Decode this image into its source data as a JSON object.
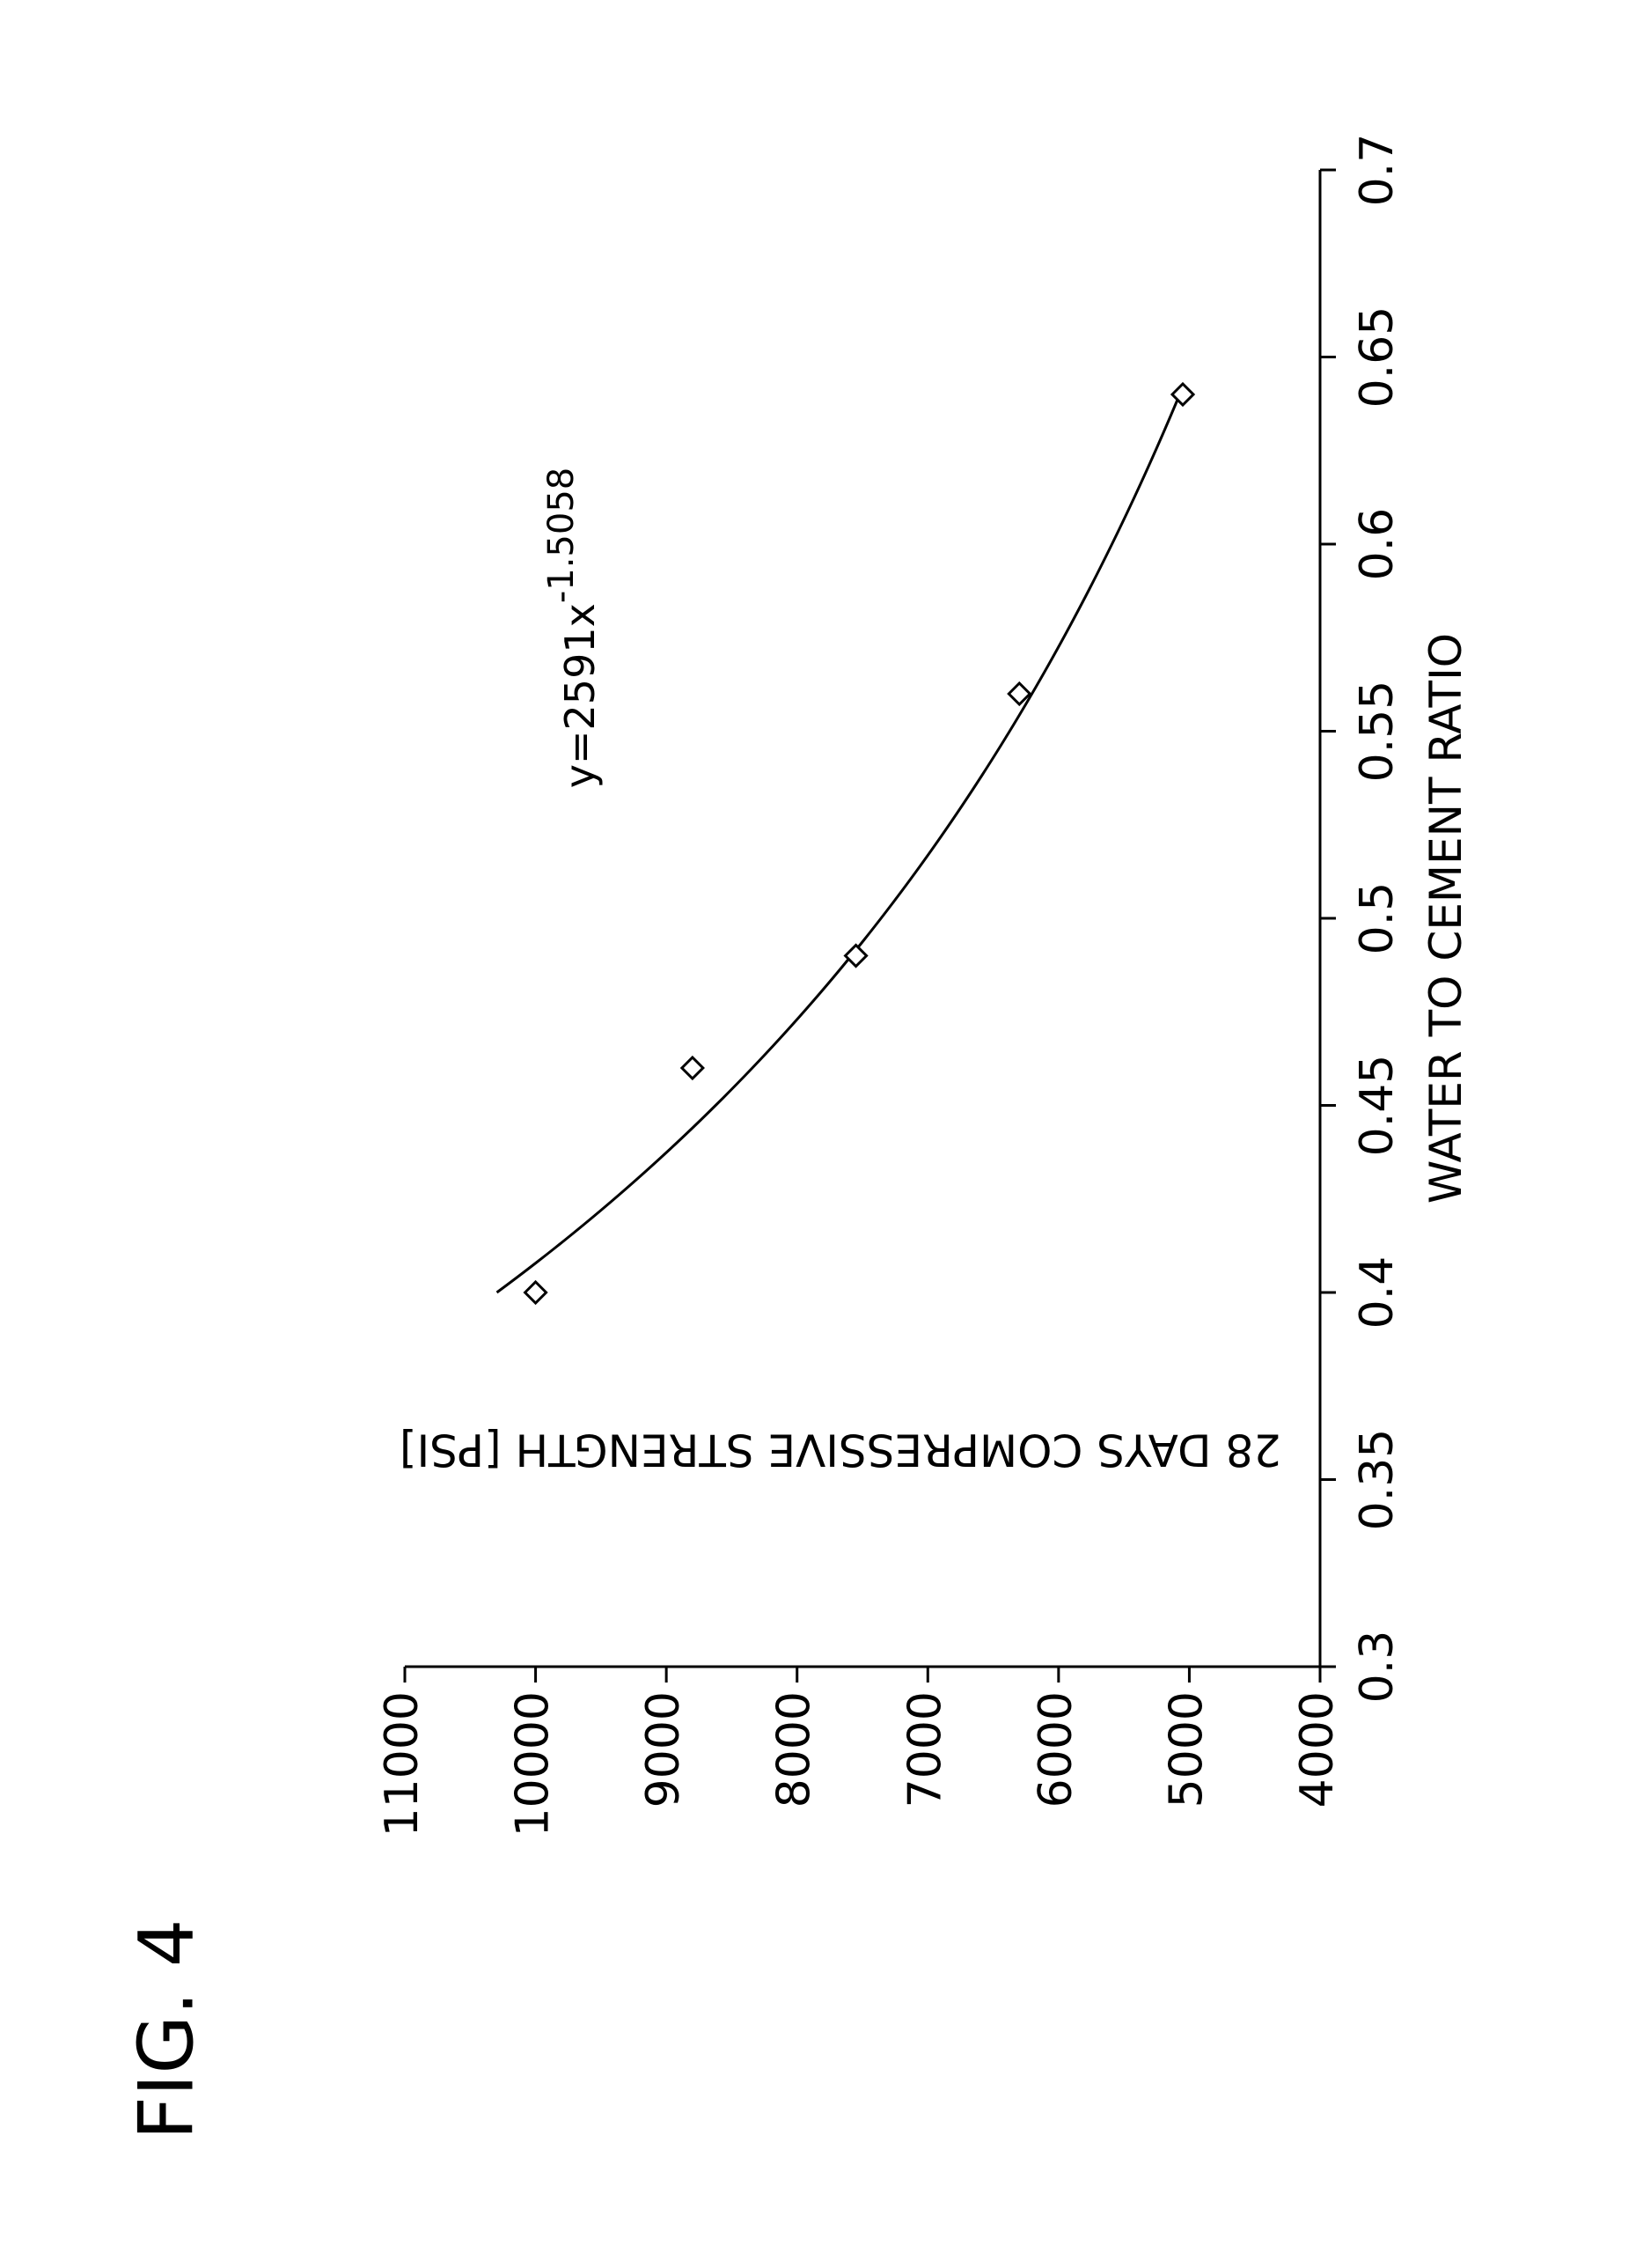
{
  "figure_label": "FIG. 4",
  "chart_data": {
    "type": "scatter",
    "title": "",
    "xlabel": "WATER TO CEMENT RATIO",
    "ylabel": "28 DAYS COMPRESSIVE STRENGTH [PSI]",
    "xlim": [
      0.3,
      0.7
    ],
    "ylim": [
      4000,
      11000
    ],
    "x_ticks": [
      0.3,
      0.35,
      0.4,
      0.45,
      0.5,
      0.55,
      0.6,
      0.65,
      0.7
    ],
    "x_tick_labels": [
      "0.3",
      "0.35",
      "0.4",
      "0.45",
      "0.5",
      "0.55",
      "0.6",
      "0.65",
      "0.7"
    ],
    "y_ticks": [
      4000,
      5000,
      6000,
      7000,
      8000,
      9000,
      10000,
      11000
    ],
    "y_tick_labels": [
      "4000",
      "5000",
      "6000",
      "7000",
      "8000",
      "9000",
      "10000",
      "11000"
    ],
    "grid": false,
    "orientation": "rotated 90 degrees counter-clockwise on the page",
    "series": [
      {
        "marker": "diamond",
        "x": [
          0.4,
          0.46,
          0.49,
          0.56,
          0.64
        ],
        "y": [
          10000,
          8800,
          7550,
          6300,
          5050
        ]
      }
    ],
    "trendline": {
      "type": "power",
      "coefficient": 2591,
      "exponent": -1.5058,
      "x_range": [
        0.4,
        0.64
      ]
    },
    "annotations": [
      {
        "text_base": "y=2591x",
        "text_exponent": "-1.5058"
      }
    ]
  }
}
